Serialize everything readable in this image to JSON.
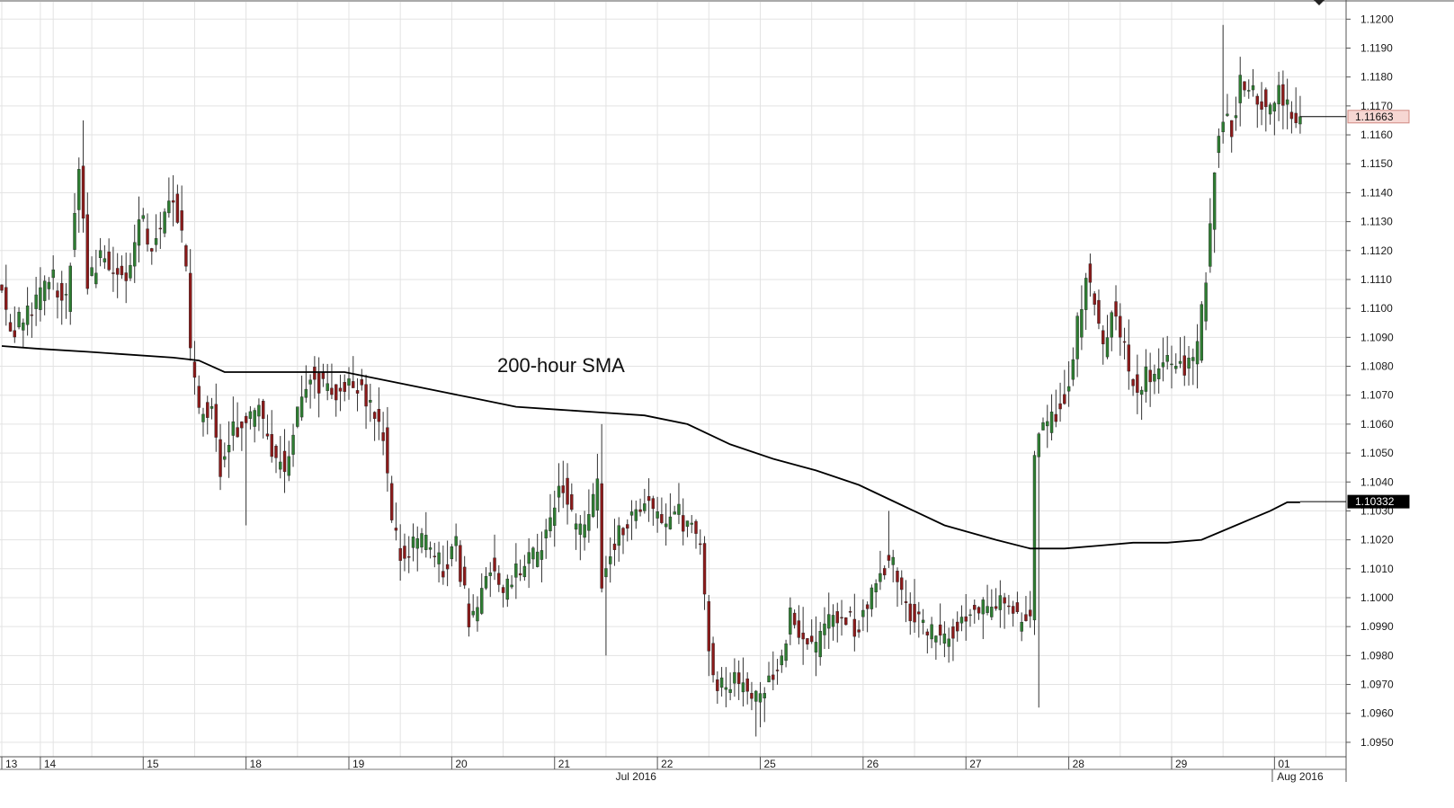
{
  "chart_data": {
    "type": "candlestick",
    "title": "",
    "annotation": "200-hour SMA",
    "y_axis": {
      "position": "right",
      "ylim": [
        1.0945,
        1.1206
      ],
      "ticks": [
        "1.0950",
        "1.0960",
        "1.0970",
        "1.0980",
        "1.0990",
        "1.1000",
        "1.1010",
        "1.1020",
        "1.1030",
        "1.1040",
        "1.1050",
        "1.1060",
        "1.1070",
        "1.1080",
        "1.1090",
        "1.1100",
        "1.1110",
        "1.1120",
        "1.1130",
        "1.1140",
        "1.1150",
        "1.1160",
        "1.1170",
        "1.1180",
        "1.1190",
        "1.1200"
      ]
    },
    "x_axis": {
      "day_labels": [
        {
          "label": "13",
          "hour": 0
        },
        {
          "label": "14",
          "hour": 9
        },
        {
          "label": "15",
          "hour": 33
        },
        {
          "label": "18",
          "hour": 57
        },
        {
          "label": "19",
          "hour": 81
        },
        {
          "label": "20",
          "hour": 105
        },
        {
          "label": "21",
          "hour": 129
        },
        {
          "label": "22",
          "hour": 153
        },
        {
          "label": "25",
          "hour": 177
        },
        {
          "label": "26",
          "hour": 201
        },
        {
          "label": "27",
          "hour": 225
        },
        {
          "label": "28",
          "hour": 249
        },
        {
          "label": "29",
          "hour": 273
        },
        {
          "label": "01",
          "hour": 297
        }
      ],
      "month_labels": [
        {
          "label": "Jul 2016",
          "hour": 148
        },
        {
          "label": "Aug 2016",
          "hour": 303
        }
      ],
      "hour_range": [
        0,
        310
      ]
    },
    "price_anchors": [
      [
        0,
        1.111
      ],
      [
        3,
        1.109
      ],
      [
        5,
        1.1095
      ],
      [
        8,
        1.1098
      ],
      [
        10,
        1.1106
      ],
      [
        13,
        1.111
      ],
      [
        16,
        1.1102
      ],
      [
        19,
        1.1152
      ],
      [
        21,
        1.1108
      ],
      [
        24,
        1.1118
      ],
      [
        27,
        1.1115
      ],
      [
        30,
        1.1108
      ],
      [
        33,
        1.1133
      ],
      [
        36,
        1.112
      ],
      [
        40,
        1.114
      ],
      [
        42,
        1.1132
      ],
      [
        44,
        1.1115
      ],
      [
        45,
        1.1085
      ],
      [
        47,
        1.1062
      ],
      [
        50,
        1.1068
      ],
      [
        52,
        1.1045
      ],
      [
        55,
        1.1058
      ],
      [
        58,
        1.1062
      ],
      [
        61,
        1.1064
      ],
      [
        64,
        1.105
      ],
      [
        67,
        1.1045
      ],
      [
        70,
        1.1062
      ],
      [
        73,
        1.1076
      ],
      [
        76,
        1.1074
      ],
      [
        79,
        1.107
      ],
      [
        82,
        1.1076
      ],
      [
        85,
        1.1072
      ],
      [
        88,
        1.1062
      ],
      [
        90,
        1.1058
      ],
      [
        92,
        1.1025
      ],
      [
        95,
        1.1012
      ],
      [
        98,
        1.102
      ],
      [
        101,
        1.1018
      ],
      [
        104,
        1.101
      ],
      [
        107,
        1.1018
      ],
      [
        110,
        1.0992
      ],
      [
        112,
        1.0996
      ],
      [
        115,
        1.101
      ],
      [
        118,
        1.1
      ],
      [
        121,
        1.1008
      ],
      [
        124,
        1.1012
      ],
      [
        127,
        1.1018
      ],
      [
        130,
        1.1032
      ],
      [
        132,
        1.1038
      ],
      [
        135,
        1.1022
      ],
      [
        138,
        1.1028
      ],
      [
        140,
        1.104
      ],
      [
        141,
        1.1005
      ],
      [
        143,
        1.1018
      ],
      [
        146,
        1.1024
      ],
      [
        149,
        1.103
      ],
      [
        152,
        1.1032
      ],
      [
        155,
        1.1025
      ],
      [
        158,
        1.103
      ],
      [
        161,
        1.1025
      ],
      [
        164,
        1.1018
      ],
      [
        166,
        1.0982
      ],
      [
        168,
        1.0968
      ],
      [
        171,
        1.0972
      ],
      [
        174,
        1.0968
      ],
      [
        177,
        1.0965
      ],
      [
        180,
        1.0972
      ],
      [
        183,
        1.0978
      ],
      [
        185,
        1.0994
      ],
      [
        188,
        1.0985
      ],
      [
        191,
        1.0982
      ],
      [
        194,
        1.0992
      ],
      [
        197,
        1.0995
      ],
      [
        200,
        1.099
      ],
      [
        203,
        1.0996
      ],
      [
        206,
        1.1012
      ],
      [
        209,
        1.101
      ],
      [
        212,
        1.0998
      ],
      [
        214,
        1.0992
      ],
      [
        217,
        1.0988
      ],
      [
        220,
        1.0986
      ],
      [
        223,
        1.0988
      ],
      [
        226,
        1.0994
      ],
      [
        229,
        1.0998
      ],
      [
        232,
        1.0996
      ],
      [
        235,
        1.1
      ],
      [
        238,
        1.0992
      ],
      [
        241,
        1.0996
      ],
      [
        242,
        1.105
      ],
      [
        244,
        1.1058
      ],
      [
        247,
        1.1064
      ],
      [
        250,
        1.1072
      ],
      [
        252,
        1.1094
      ],
      [
        254,
        1.1112
      ],
      [
        256,
        1.1102
      ],
      [
        258,
        1.1085
      ],
      [
        260,
        1.11
      ],
      [
        262,
        1.1092
      ],
      [
        264,
        1.1078
      ],
      [
        266,
        1.1072
      ],
      [
        268,
        1.1076
      ],
      [
        271,
        1.1078
      ],
      [
        274,
        1.1082
      ],
      [
        277,
        1.108
      ],
      [
        280,
        1.1086
      ],
      [
        282,
        1.1112
      ],
      [
        284,
        1.115
      ],
      [
        286,
        1.1168
      ],
      [
        288,
        1.1162
      ],
      [
        290,
        1.1178
      ],
      [
        293,
        1.1175
      ],
      [
        296,
        1.117
      ],
      [
        299,
        1.1176
      ],
      [
        302,
        1.1168
      ],
      [
        303,
        1.1166
      ]
    ],
    "sma_200h": [
      [
        0,
        1.1087
      ],
      [
        9,
        1.1086
      ],
      [
        20,
        1.1085
      ],
      [
        40,
        1.1083
      ],
      [
        46,
        1.1082
      ],
      [
        52,
        1.1078
      ],
      [
        60,
        1.1078
      ],
      [
        70,
        1.1078
      ],
      [
        80,
        1.1078
      ],
      [
        90,
        1.1075
      ],
      [
        100,
        1.1072
      ],
      [
        110,
        1.1069
      ],
      [
        120,
        1.1066
      ],
      [
        130,
        1.1065
      ],
      [
        140,
        1.1064
      ],
      [
        150,
        1.1063
      ],
      [
        160,
        1.106
      ],
      [
        170,
        1.1053
      ],
      [
        180,
        1.1048
      ],
      [
        190,
        1.1044
      ],
      [
        200,
        1.1039
      ],
      [
        210,
        1.1032
      ],
      [
        220,
        1.1025
      ],
      [
        232,
        1.102
      ],
      [
        240,
        1.1017
      ],
      [
        248,
        1.1017
      ],
      [
        256,
        1.1018
      ],
      [
        264,
        1.1019
      ],
      [
        272,
        1.1019
      ],
      [
        280,
        1.102
      ],
      [
        288,
        1.1025
      ],
      [
        296,
        1.103
      ],
      [
        300,
        1.1033
      ],
      [
        303,
        1.1033
      ]
    ],
    "last_price": {
      "label": "1.11663",
      "value": 1.11663
    },
    "sma_last": {
      "label": "1.10332",
      "value": 1.10332
    },
    "colors": {
      "up_candle": "#2e7d32",
      "down_candle": "#8b1a1a",
      "wick": "#333333",
      "sma_line": "#000000",
      "grid": "#e3e3e3",
      "price_badge_bg": "#f6d7d3",
      "price_badge_border": "#d08a82",
      "sma_badge_bg": "#000000",
      "sma_badge_text": "#ffffff"
    },
    "grid": true,
    "legend": "none"
  }
}
